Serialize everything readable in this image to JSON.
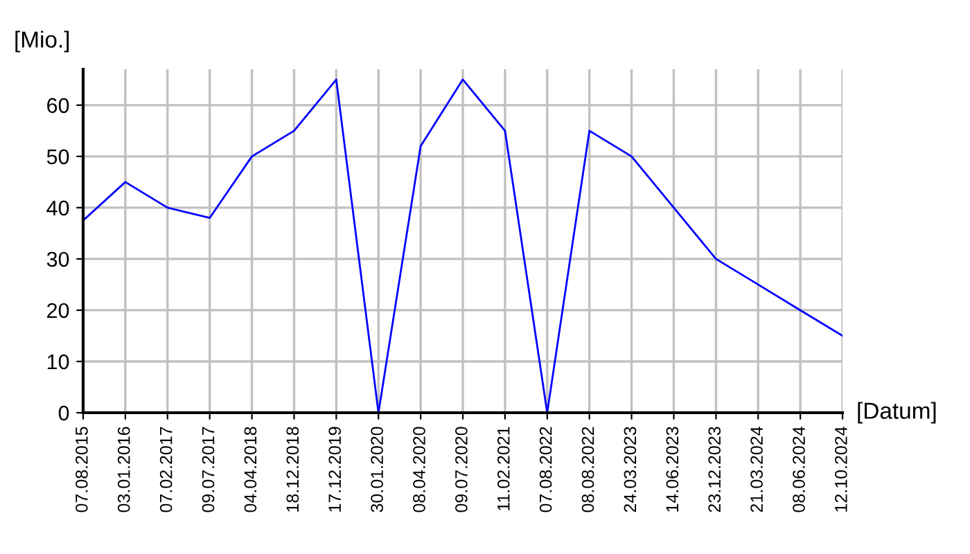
{
  "chart_data": {
    "type": "line",
    "ylabel": "[Mio.]",
    "xlabel": "[Datum]",
    "categories": [
      "07.08.2015",
      "03.01.2016",
      "07.02.2017",
      "09.07.2017",
      "04.04.2018",
      "18.12.2018",
      "17.12.2019",
      "30.01.2020",
      "08.04.2020",
      "09.07.2020",
      "11.02.2021",
      "07.08.2022",
      "08.08.2022",
      "24.03.2023",
      "14.06.2023",
      "23.12.2023",
      "21.03.2024",
      "08.06.2024",
      "12.10.2024"
    ],
    "series": [
      {
        "color": "#0000ff",
        "values": [
          37.5,
          45,
          40,
          38,
          50,
          55,
          65,
          0,
          52,
          65,
          55,
          0,
          55,
          50,
          40,
          30,
          25,
          20,
          15
        ]
      }
    ],
    "ylim": [
      0,
      67
    ],
    "yticks": [
      0,
      10,
      20,
      30,
      40,
      50,
      60
    ],
    "grid": true,
    "marker": "none",
    "line_style": "solid",
    "legend": false
  }
}
